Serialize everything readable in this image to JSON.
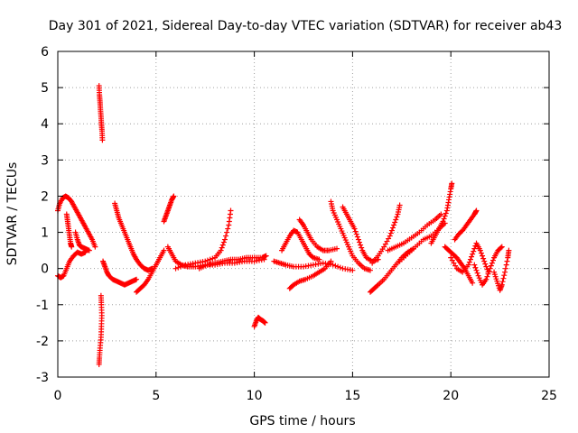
{
  "chart_data": {
    "type": "scatter",
    "title": "Day 301 of 2021, Sidereal Day-to-day VTEC variation (SDTVAR) for receiver ab43",
    "xlabel": "GPS time / hours",
    "ylabel": "SDTVAR / TECUs",
    "xlim": [
      0,
      25
    ],
    "ylim": [
      -3,
      6
    ],
    "xticks": [
      0,
      5,
      10,
      15,
      20,
      25
    ],
    "yticks": [
      -3,
      -2,
      -1,
      0,
      1,
      2,
      3,
      4,
      5,
      6
    ],
    "grid": true,
    "marker": "+",
    "color": "#ff0000",
    "tracks": [
      [
        [
          0.0,
          -0.2
        ],
        [
          0.15,
          -0.25
        ],
        [
          0.3,
          -0.2
        ],
        [
          0.45,
          0.0
        ],
        [
          0.6,
          0.2
        ],
        [
          0.8,
          0.35
        ],
        [
          1.0,
          0.45
        ],
        [
          1.2,
          0.4
        ],
        [
          1.4,
          0.45
        ]
      ],
      [
        [
          0.0,
          1.6
        ],
        [
          0.1,
          1.8
        ],
        [
          0.25,
          1.95
        ],
        [
          0.4,
          2.0
        ],
        [
          0.55,
          1.95
        ],
        [
          0.7,
          1.85
        ],
        [
          0.85,
          1.7
        ],
        [
          1.0,
          1.55
        ],
        [
          1.15,
          1.4
        ],
        [
          1.3,
          1.25
        ],
        [
          1.45,
          1.1
        ],
        [
          1.6,
          0.95
        ],
        [
          1.75,
          0.8
        ],
        [
          1.9,
          0.6
        ]
      ],
      [
        [
          0.45,
          1.5
        ],
        [
          0.5,
          1.3
        ],
        [
          0.55,
          1.1
        ],
        [
          0.6,
          0.9
        ],
        [
          0.65,
          0.7
        ],
        [
          0.7,
          0.6
        ]
      ],
      [
        [
          0.9,
          1.0
        ],
        [
          1.0,
          0.8
        ],
        [
          1.1,
          0.65
        ],
        [
          1.2,
          0.6
        ],
        [
          1.4,
          0.55
        ],
        [
          1.6,
          0.5
        ]
      ],
      [
        [
          2.1,
          5.05
        ],
        [
          2.12,
          4.8
        ],
        [
          2.15,
          4.6
        ],
        [
          2.17,
          4.4
        ],
        [
          2.2,
          4.2
        ],
        [
          2.22,
          4.0
        ],
        [
          2.25,
          3.8
        ],
        [
          2.27,
          3.55
        ]
      ],
      [
        [
          2.2,
          -0.75
        ],
        [
          2.22,
          -1.0
        ],
        [
          2.24,
          -1.3
        ],
        [
          2.22,
          -1.6
        ],
        [
          2.2,
          -1.9
        ],
        [
          2.15,
          -2.2
        ],
        [
          2.12,
          -2.45
        ],
        [
          2.1,
          -2.65
        ]
      ],
      [
        [
          2.3,
          0.2
        ],
        [
          2.4,
          0.05
        ],
        [
          2.5,
          -0.1
        ],
        [
          2.6,
          -0.2
        ],
        [
          2.8,
          -0.3
        ],
        [
          3.0,
          -0.35
        ],
        [
          3.2,
          -0.4
        ],
        [
          3.4,
          -0.45
        ],
        [
          3.6,
          -0.4
        ],
        [
          3.8,
          -0.35
        ],
        [
          4.0,
          -0.3
        ]
      ],
      [
        [
          2.9,
          1.8
        ],
        [
          3.0,
          1.6
        ],
        [
          3.1,
          1.4
        ],
        [
          3.25,
          1.2
        ],
        [
          3.4,
          1.0
        ],
        [
          3.55,
          0.8
        ],
        [
          3.7,
          0.6
        ],
        [
          3.85,
          0.4
        ],
        [
          4.0,
          0.25
        ],
        [
          4.2,
          0.1
        ],
        [
          4.4,
          0.0
        ],
        [
          4.6,
          -0.05
        ],
        [
          4.8,
          0.0
        ]
      ],
      [
        [
          4.0,
          -0.65
        ],
        [
          4.2,
          -0.55
        ],
        [
          4.4,
          -0.45
        ],
        [
          4.6,
          -0.3
        ],
        [
          4.8,
          -0.1
        ],
        [
          5.0,
          0.1
        ],
        [
          5.2,
          0.3
        ],
        [
          5.4,
          0.5
        ]
      ],
      [
        [
          5.4,
          1.3
        ],
        [
          5.5,
          1.45
        ],
        [
          5.6,
          1.6
        ],
        [
          5.7,
          1.75
        ],
        [
          5.8,
          1.9
        ],
        [
          5.9,
          2.0
        ]
      ],
      [
        [
          5.6,
          0.6
        ],
        [
          5.8,
          0.4
        ],
        [
          6.0,
          0.2
        ],
        [
          6.3,
          0.1
        ],
        [
          6.6,
          0.05
        ],
        [
          7.0,
          0.05
        ],
        [
          7.5,
          0.1
        ],
        [
          8.0,
          0.1
        ],
        [
          8.5,
          0.15
        ],
        [
          9.0,
          0.15
        ],
        [
          9.5,
          0.2
        ],
        [
          10.0,
          0.2
        ],
        [
          10.5,
          0.25
        ]
      ],
      [
        [
          6.0,
          0.0
        ],
        [
          6.5,
          0.1
        ],
        [
          7.0,
          0.15
        ],
        [
          7.5,
          0.2
        ],
        [
          8.0,
          0.3
        ],
        [
          8.3,
          0.5
        ],
        [
          8.5,
          0.8
        ],
        [
          8.7,
          1.2
        ],
        [
          8.8,
          1.6
        ]
      ],
      [
        [
          7.2,
          0.0
        ],
        [
          7.6,
          0.1
        ],
        [
          8.0,
          0.15
        ],
        [
          8.4,
          0.2
        ],
        [
          8.8,
          0.25
        ],
        [
          9.2,
          0.25
        ],
        [
          9.6,
          0.3
        ],
        [
          10.0,
          0.3
        ],
        [
          10.4,
          0.3
        ],
        [
          10.6,
          0.35
        ]
      ],
      [
        [
          10.0,
          -1.6
        ],
        [
          10.1,
          -1.45
        ],
        [
          10.2,
          -1.35
        ],
        [
          10.3,
          -1.4
        ],
        [
          10.45,
          -1.45
        ],
        [
          10.55,
          -1.5
        ]
      ],
      [
        [
          11.0,
          0.2
        ],
        [
          11.3,
          0.15
        ],
        [
          11.6,
          0.1
        ],
        [
          12.0,
          0.05
        ],
        [
          12.5,
          0.05
        ],
        [
          13.0,
          0.1
        ],
        [
          13.5,
          0.15
        ],
        [
          14.0,
          0.1
        ],
        [
          14.5,
          0.0
        ],
        [
          15.0,
          -0.05
        ]
      ],
      [
        [
          11.4,
          0.5
        ],
        [
          11.6,
          0.7
        ],
        [
          11.8,
          0.9
        ],
        [
          12.0,
          1.05
        ],
        [
          12.2,
          1.0
        ],
        [
          12.4,
          0.8
        ],
        [
          12.6,
          0.6
        ],
        [
          12.8,
          0.4
        ],
        [
          13.0,
          0.3
        ],
        [
          13.3,
          0.25
        ]
      ],
      [
        [
          11.8,
          -0.55
        ],
        [
          12.0,
          -0.45
        ],
        [
          12.3,
          -0.35
        ],
        [
          12.6,
          -0.3
        ],
        [
          13.0,
          -0.2
        ],
        [
          13.3,
          -0.1
        ],
        [
          13.6,
          0.0
        ],
        [
          13.9,
          0.2
        ]
      ],
      [
        [
          12.3,
          1.35
        ],
        [
          12.5,
          1.2
        ],
        [
          12.7,
          1.0
        ],
        [
          12.9,
          0.8
        ],
        [
          13.2,
          0.6
        ],
        [
          13.5,
          0.5
        ],
        [
          13.8,
          0.5
        ],
        [
          14.2,
          0.55
        ]
      ],
      [
        [
          13.9,
          1.85
        ],
        [
          14.0,
          1.6
        ],
        [
          14.2,
          1.35
        ],
        [
          14.4,
          1.1
        ],
        [
          14.6,
          0.85
        ],
        [
          14.8,
          0.6
        ],
        [
          15.0,
          0.35
        ],
        [
          15.3,
          0.15
        ],
        [
          15.6,
          0.0
        ],
        [
          15.9,
          -0.05
        ]
      ],
      [
        [
          14.5,
          1.7
        ],
        [
          14.7,
          1.5
        ],
        [
          14.9,
          1.3
        ],
        [
          15.1,
          1.1
        ],
        [
          15.3,
          0.8
        ],
        [
          15.5,
          0.5
        ],
        [
          15.7,
          0.3
        ],
        [
          16.0,
          0.2
        ],
        [
          16.3,
          0.25
        ]
      ],
      [
        [
          15.9,
          -0.65
        ],
        [
          16.1,
          -0.55
        ],
        [
          16.3,
          -0.45
        ],
        [
          16.6,
          -0.3
        ],
        [
          16.9,
          -0.1
        ],
        [
          17.2,
          0.1
        ],
        [
          17.5,
          0.3
        ],
        [
          17.8,
          0.45
        ],
        [
          18.1,
          0.55
        ]
      ],
      [
        [
          16.0,
          0.15
        ],
        [
          16.3,
          0.35
        ],
        [
          16.6,
          0.6
        ],
        [
          16.9,
          0.9
        ],
        [
          17.1,
          1.2
        ],
        [
          17.3,
          1.5
        ],
        [
          17.4,
          1.75
        ]
      ],
      [
        [
          16.8,
          0.5
        ],
        [
          17.2,
          0.6
        ],
        [
          17.6,
          0.7
        ],
        [
          18.0,
          0.85
        ],
        [
          18.4,
          1.0
        ],
        [
          18.8,
          1.2
        ],
        [
          19.2,
          1.35
        ],
        [
          19.5,
          1.5
        ]
      ],
      [
        [
          17.4,
          0.2
        ],
        [
          17.8,
          0.4
        ],
        [
          18.2,
          0.6
        ],
        [
          18.6,
          0.8
        ],
        [
          19.0,
          0.9
        ],
        [
          19.4,
          1.1
        ],
        [
          19.7,
          1.25
        ]
      ],
      [
        [
          19.0,
          0.7
        ],
        [
          19.2,
          0.9
        ],
        [
          19.4,
          1.1
        ],
        [
          19.6,
          1.3
        ],
        [
          19.8,
          1.6
        ],
        [
          19.9,
          1.9
        ],
        [
          20.0,
          2.2
        ],
        [
          20.05,
          2.35
        ]
      ],
      [
        [
          19.7,
          0.6
        ],
        [
          19.9,
          0.5
        ],
        [
          20.1,
          0.4
        ],
        [
          20.3,
          0.3
        ],
        [
          20.5,
          0.15
        ],
        [
          20.7,
          0.0
        ],
        [
          20.9,
          -0.2
        ],
        [
          21.1,
          -0.4
        ]
      ],
      [
        [
          20.2,
          0.8
        ],
        [
          20.4,
          0.95
        ],
        [
          20.6,
          1.05
        ],
        [
          20.8,
          1.2
        ],
        [
          21.0,
          1.35
        ],
        [
          21.2,
          1.5
        ],
        [
          21.3,
          1.6
        ]
      ],
      [
        [
          20.0,
          0.3
        ],
        [
          20.3,
          0.0
        ],
        [
          20.6,
          -0.1
        ],
        [
          20.9,
          0.1
        ],
        [
          21.1,
          0.4
        ],
        [
          21.3,
          0.7
        ],
        [
          21.5,
          0.5
        ],
        [
          21.7,
          0.2
        ],
        [
          21.9,
          -0.1
        ]
      ],
      [
        [
          21.2,
          0.1
        ],
        [
          21.4,
          -0.2
        ],
        [
          21.6,
          -0.45
        ],
        [
          21.8,
          -0.3
        ],
        [
          22.0,
          0.0
        ],
        [
          22.2,
          0.3
        ],
        [
          22.4,
          0.5
        ],
        [
          22.6,
          0.6
        ]
      ],
      [
        [
          22.2,
          -0.1
        ],
        [
          22.35,
          -0.35
        ],
        [
          22.5,
          -0.6
        ],
        [
          22.6,
          -0.45
        ],
        [
          22.75,
          -0.1
        ],
        [
          22.9,
          0.3
        ],
        [
          22.95,
          0.5
        ]
      ]
    ]
  }
}
